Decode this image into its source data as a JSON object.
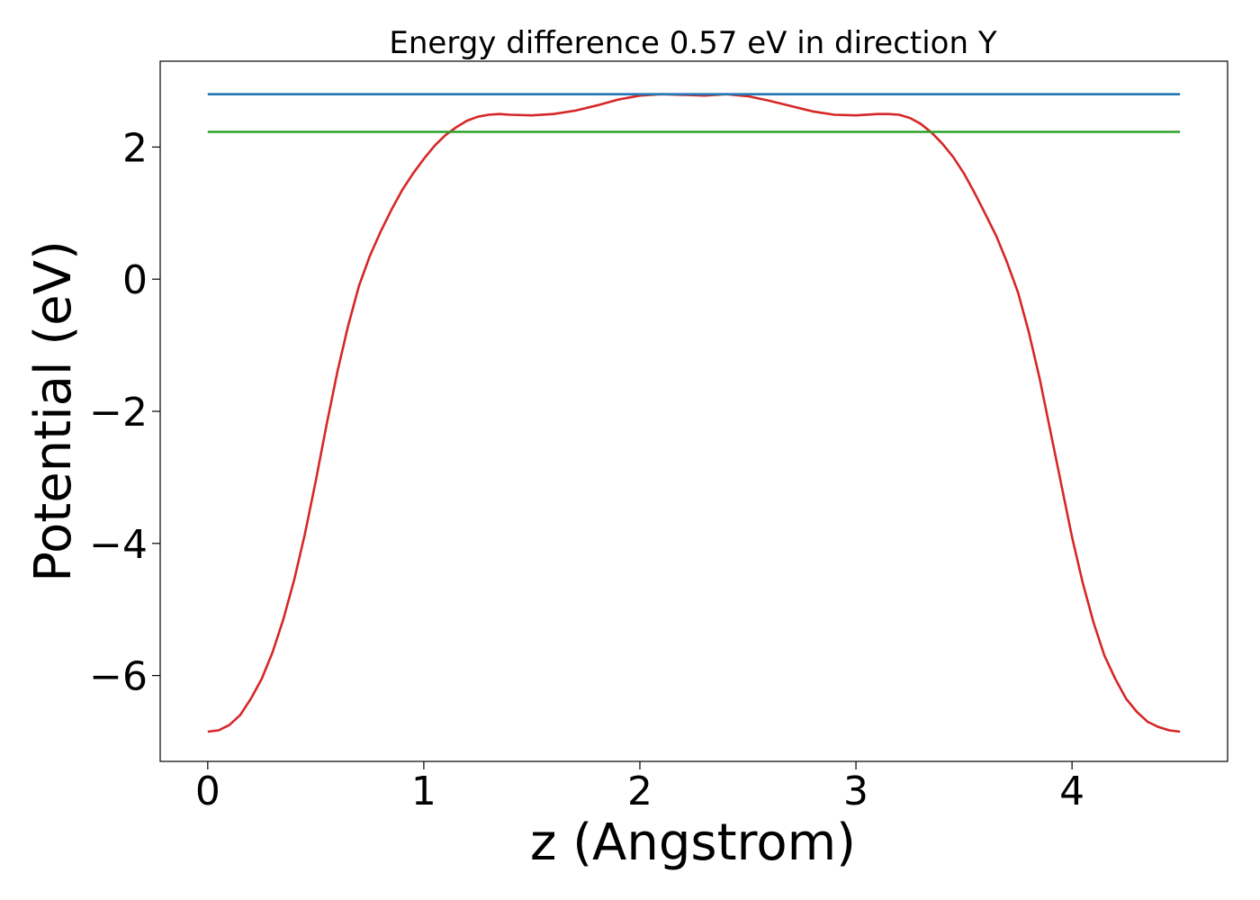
{
  "chart_data": {
    "type": "line",
    "title": "Energy difference 0.57 eV in direction Y",
    "xlabel": "z (Angstrom)",
    "ylabel": "Potential (eV)",
    "xlim": [
      -0.22,
      4.72
    ],
    "ylim": [
      -7.3,
      3.3
    ],
    "xticks": [
      0,
      1,
      2,
      3,
      4
    ],
    "xtick_labels": [
      "0",
      "1",
      "2",
      "3",
      "4"
    ],
    "yticks": [
      -6,
      -4,
      -2,
      0,
      2
    ],
    "ytick_labels": [
      "−6",
      "−4",
      "−2",
      "0",
      "2"
    ],
    "grid": false,
    "series": [
      {
        "name": "potential",
        "color": "#d62728",
        "x": [
          0,
          0.05,
          0.1,
          0.15,
          0.2,
          0.25,
          0.3,
          0.35,
          0.4,
          0.45,
          0.5,
          0.55,
          0.6,
          0.65,
          0.7,
          0.75,
          0.8,
          0.85,
          0.9,
          0.95,
          1.0,
          1.05,
          1.1,
          1.15,
          1.2,
          1.25,
          1.3,
          1.35,
          1.4,
          1.5,
          1.6,
          1.7,
          1.8,
          1.9,
          2.0,
          2.1,
          2.2,
          2.3,
          2.4,
          2.5,
          2.6,
          2.7,
          2.8,
          2.9,
          3.0,
          3.1,
          3.15,
          3.2,
          3.25,
          3.3,
          3.35,
          3.4,
          3.45,
          3.5,
          3.55,
          3.6,
          3.65,
          3.7,
          3.75,
          3.8,
          3.85,
          3.9,
          3.95,
          4.0,
          4.05,
          4.1,
          4.15,
          4.2,
          4.25,
          4.3,
          4.35,
          4.4,
          4.45,
          4.5
        ],
        "y": [
          -6.85,
          -6.83,
          -6.75,
          -6.6,
          -6.35,
          -6.05,
          -5.65,
          -5.15,
          -4.55,
          -3.85,
          -3.05,
          -2.2,
          -1.4,
          -0.7,
          -0.1,
          0.35,
          0.72,
          1.05,
          1.35,
          1.6,
          1.82,
          2.02,
          2.18,
          2.3,
          2.4,
          2.46,
          2.49,
          2.5,
          2.49,
          2.48,
          2.5,
          2.55,
          2.63,
          2.72,
          2.78,
          2.8,
          2.79,
          2.78,
          2.8,
          2.77,
          2.7,
          2.62,
          2.54,
          2.49,
          2.48,
          2.5,
          2.5,
          2.49,
          2.44,
          2.35,
          2.22,
          2.05,
          1.85,
          1.6,
          1.3,
          0.98,
          0.65,
          0.25,
          -0.2,
          -0.8,
          -1.5,
          -2.3,
          -3.1,
          -3.9,
          -4.6,
          -5.2,
          -5.7,
          -6.05,
          -6.35,
          -6.55,
          -6.7,
          -6.78,
          -6.83,
          -6.85
        ]
      },
      {
        "name": "upper level",
        "color": "#1f77b4",
        "x": [
          0,
          4.5
        ],
        "y": [
          2.8,
          2.8
        ]
      },
      {
        "name": "lower level",
        "color": "#2ca02c",
        "x": [
          0,
          4.5
        ],
        "y": [
          2.23,
          2.23
        ]
      }
    ]
  }
}
